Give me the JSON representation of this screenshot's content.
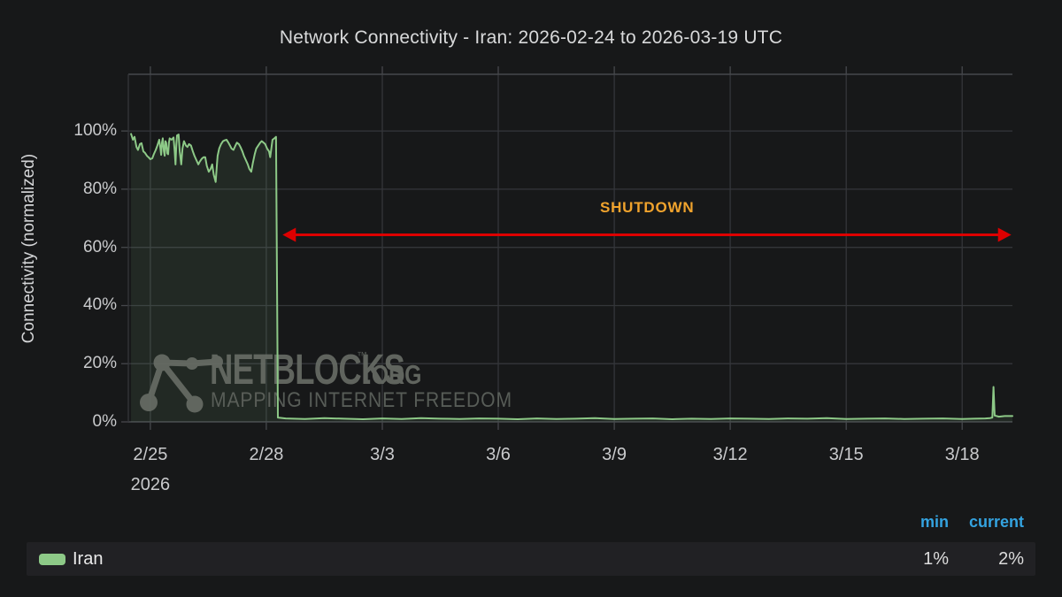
{
  "title": "Network Connectivity - Iran: 2026-02-24 to 2026-03-19 UTC",
  "colors": {
    "background": "#171819",
    "grid": "#34363a",
    "spine": "#46484c",
    "tick_text": "#c9cacc",
    "series_green": "#8dc987",
    "series_fill": "rgba(141,201,135,0.10)",
    "arrow_red": "#dd0000",
    "shutdown_orange": "#f0a32d",
    "legend_header_blue": "#34a3e0",
    "legend_row_bg": "#212124",
    "watermark_gray": "#686d66"
  },
  "chart_data": {
    "type": "line",
    "title": "Network Connectivity - Iran: 2026-02-24 to 2026-03-19 UTC",
    "ylabel": "Connectivity (normalized)",
    "xlabel": "",
    "grid": true,
    "x_range_days": [
      0.43,
      23.3
    ],
    "y_range": [
      0,
      119.5
    ],
    "x_ticks": [
      {
        "day": 1,
        "label": "2/25",
        "sublabel": "2026"
      },
      {
        "day": 4,
        "label": "2/28"
      },
      {
        "day": 7,
        "label": "3/3"
      },
      {
        "day": 10,
        "label": "3/6"
      },
      {
        "day": 13,
        "label": "3/9"
      },
      {
        "day": 16,
        "label": "3/12"
      },
      {
        "day": 19,
        "label": "3/15"
      },
      {
        "day": 22,
        "label": "3/18"
      }
    ],
    "y_ticks": [
      {
        "value": 0,
        "label": "0%"
      },
      {
        "value": 20,
        "label": "20%"
      },
      {
        "value": 40,
        "label": "40%"
      },
      {
        "value": 60,
        "label": "60%"
      },
      {
        "value": 80,
        "label": "80%"
      },
      {
        "value": 100,
        "label": "100%"
      }
    ],
    "annotation": {
      "label": "SHUTDOWN",
      "label_day": 13.85,
      "label_pct": 73.5,
      "arrow_y_pct": 64.3,
      "arrow_x1_day": 4.42,
      "arrow_x2_day": 23.27
    },
    "series": [
      {
        "name": "Iran",
        "min": "1%",
        "current": "2%",
        "points": [
          [
            0.5,
            99
          ],
          [
            0.55,
            97
          ],
          [
            0.59,
            98
          ],
          [
            0.64,
            94.5
          ],
          [
            0.68,
            93.5
          ],
          [
            0.73,
            95.5
          ],
          [
            0.77,
            95.8
          ],
          [
            0.82,
            93
          ],
          [
            0.86,
            92.5
          ],
          [
            0.91,
            91.5
          ],
          [
            0.95,
            91
          ],
          [
            1.0,
            90.3
          ],
          [
            1.05,
            90.6
          ],
          [
            1.09,
            92
          ],
          [
            1.14,
            93.5
          ],
          [
            1.18,
            95
          ],
          [
            1.23,
            97
          ],
          [
            1.26,
            94
          ],
          [
            1.28,
            91.8
          ],
          [
            1.3,
            96
          ],
          [
            1.32,
            97.5
          ],
          [
            1.35,
            93
          ],
          [
            1.37,
            91.5
          ],
          [
            1.39,
            96.5
          ],
          [
            1.41,
            96
          ],
          [
            1.44,
            92.3
          ],
          [
            1.46,
            92
          ],
          [
            1.48,
            96
          ],
          [
            1.5,
            97.5
          ],
          [
            1.55,
            97
          ],
          [
            1.6,
            97.8
          ],
          [
            1.63,
            93
          ],
          [
            1.65,
            88.5
          ],
          [
            1.67,
            95
          ],
          [
            1.69,
            98.5
          ],
          [
            1.73,
            98.8
          ],
          [
            1.76,
            93
          ],
          [
            1.8,
            88.5
          ],
          [
            1.83,
            94
          ],
          [
            1.87,
            96.5
          ],
          [
            1.92,
            95
          ],
          [
            1.96,
            94.5
          ],
          [
            2.0,
            95.5
          ],
          [
            2.05,
            95
          ],
          [
            2.1,
            93
          ],
          [
            2.14,
            91.5
          ],
          [
            2.19,
            90
          ],
          [
            2.24,
            88.5
          ],
          [
            2.28,
            89.5
          ],
          [
            2.33,
            90.5
          ],
          [
            2.38,
            91
          ],
          [
            2.42,
            91
          ],
          [
            2.46,
            88
          ],
          [
            2.51,
            86
          ],
          [
            2.56,
            87
          ],
          [
            2.6,
            88.5
          ],
          [
            2.64,
            85
          ],
          [
            2.69,
            82.5
          ],
          [
            2.72,
            88
          ],
          [
            2.74,
            91.5
          ],
          [
            2.78,
            94
          ],
          [
            2.83,
            95.5
          ],
          [
            2.88,
            96.5
          ],
          [
            2.92,
            96.8
          ],
          [
            2.97,
            97
          ],
          [
            3.02,
            96
          ],
          [
            3.06,
            95
          ],
          [
            3.1,
            94
          ],
          [
            3.15,
            93.5
          ],
          [
            3.2,
            95
          ],
          [
            3.24,
            96
          ],
          [
            3.29,
            95.5
          ],
          [
            3.33,
            94.5
          ],
          [
            3.38,
            93
          ],
          [
            3.42,
            91.5
          ],
          [
            3.47,
            90
          ],
          [
            3.52,
            88.5
          ],
          [
            3.56,
            87
          ],
          [
            3.61,
            86
          ],
          [
            3.65,
            89
          ],
          [
            3.7,
            92
          ],
          [
            3.74,
            94
          ],
          [
            3.79,
            95
          ],
          [
            3.84,
            96
          ],
          [
            3.88,
            96.5
          ],
          [
            3.93,
            96
          ],
          [
            3.97,
            95.5
          ],
          [
            4.02,
            94
          ],
          [
            4.07,
            93
          ],
          [
            4.1,
            91
          ],
          [
            4.13,
            94
          ],
          [
            4.16,
            97
          ],
          [
            4.21,
            97.5
          ],
          [
            4.25,
            98
          ],
          [
            4.28,
            40
          ],
          [
            4.3,
            1.5
          ],
          [
            4.5,
            1.2
          ],
          [
            5,
            1
          ],
          [
            5.5,
            1.3
          ],
          [
            6,
            1.1
          ],
          [
            6.5,
            0.9
          ],
          [
            7,
            1.2
          ],
          [
            7.5,
            1
          ],
          [
            8,
            1.3
          ],
          [
            8.5,
            1.1
          ],
          [
            9,
            1
          ],
          [
            9.5,
            1.2
          ],
          [
            10,
            1.1
          ],
          [
            10.5,
            0.9
          ],
          [
            11,
            1.2
          ],
          [
            11.5,
            1
          ],
          [
            12,
            1.1
          ],
          [
            12.5,
            1.3
          ],
          [
            13,
            1
          ],
          [
            13.5,
            1.1
          ],
          [
            14,
            1.2
          ],
          [
            14.5,
            0.9
          ],
          [
            15,
            1.1
          ],
          [
            15.5,
            1
          ],
          [
            16,
            1.2
          ],
          [
            16.5,
            1.1
          ],
          [
            17,
            1
          ],
          [
            17.5,
            1.2
          ],
          [
            18,
            1.1
          ],
          [
            18.5,
            1.3
          ],
          [
            19,
            1
          ],
          [
            19.5,
            1.1
          ],
          [
            20,
            1.2
          ],
          [
            20.5,
            1
          ],
          [
            21,
            1.1
          ],
          [
            21.5,
            1.2
          ],
          [
            22,
            1
          ],
          [
            22.3,
            1.1
          ],
          [
            22.6,
            1.2
          ],
          [
            22.72,
            1.3
          ],
          [
            22.78,
            1.5
          ],
          [
            22.81,
            12
          ],
          [
            22.84,
            2.2
          ],
          [
            22.95,
            1.8
          ],
          [
            23.1,
            2
          ],
          [
            23.3,
            2
          ]
        ]
      }
    ],
    "legend_position": "bottom"
  },
  "legend": {
    "header_min": "min",
    "header_current": "current",
    "row_name": "Iran",
    "row_min": "1%",
    "row_current": "2%"
  },
  "watermark": {
    "brand": "NETBLOCKS",
    "tm": "™",
    "suffix": ".ORG",
    "tagline": "MAPPING INTERNET FREEDOM"
  }
}
